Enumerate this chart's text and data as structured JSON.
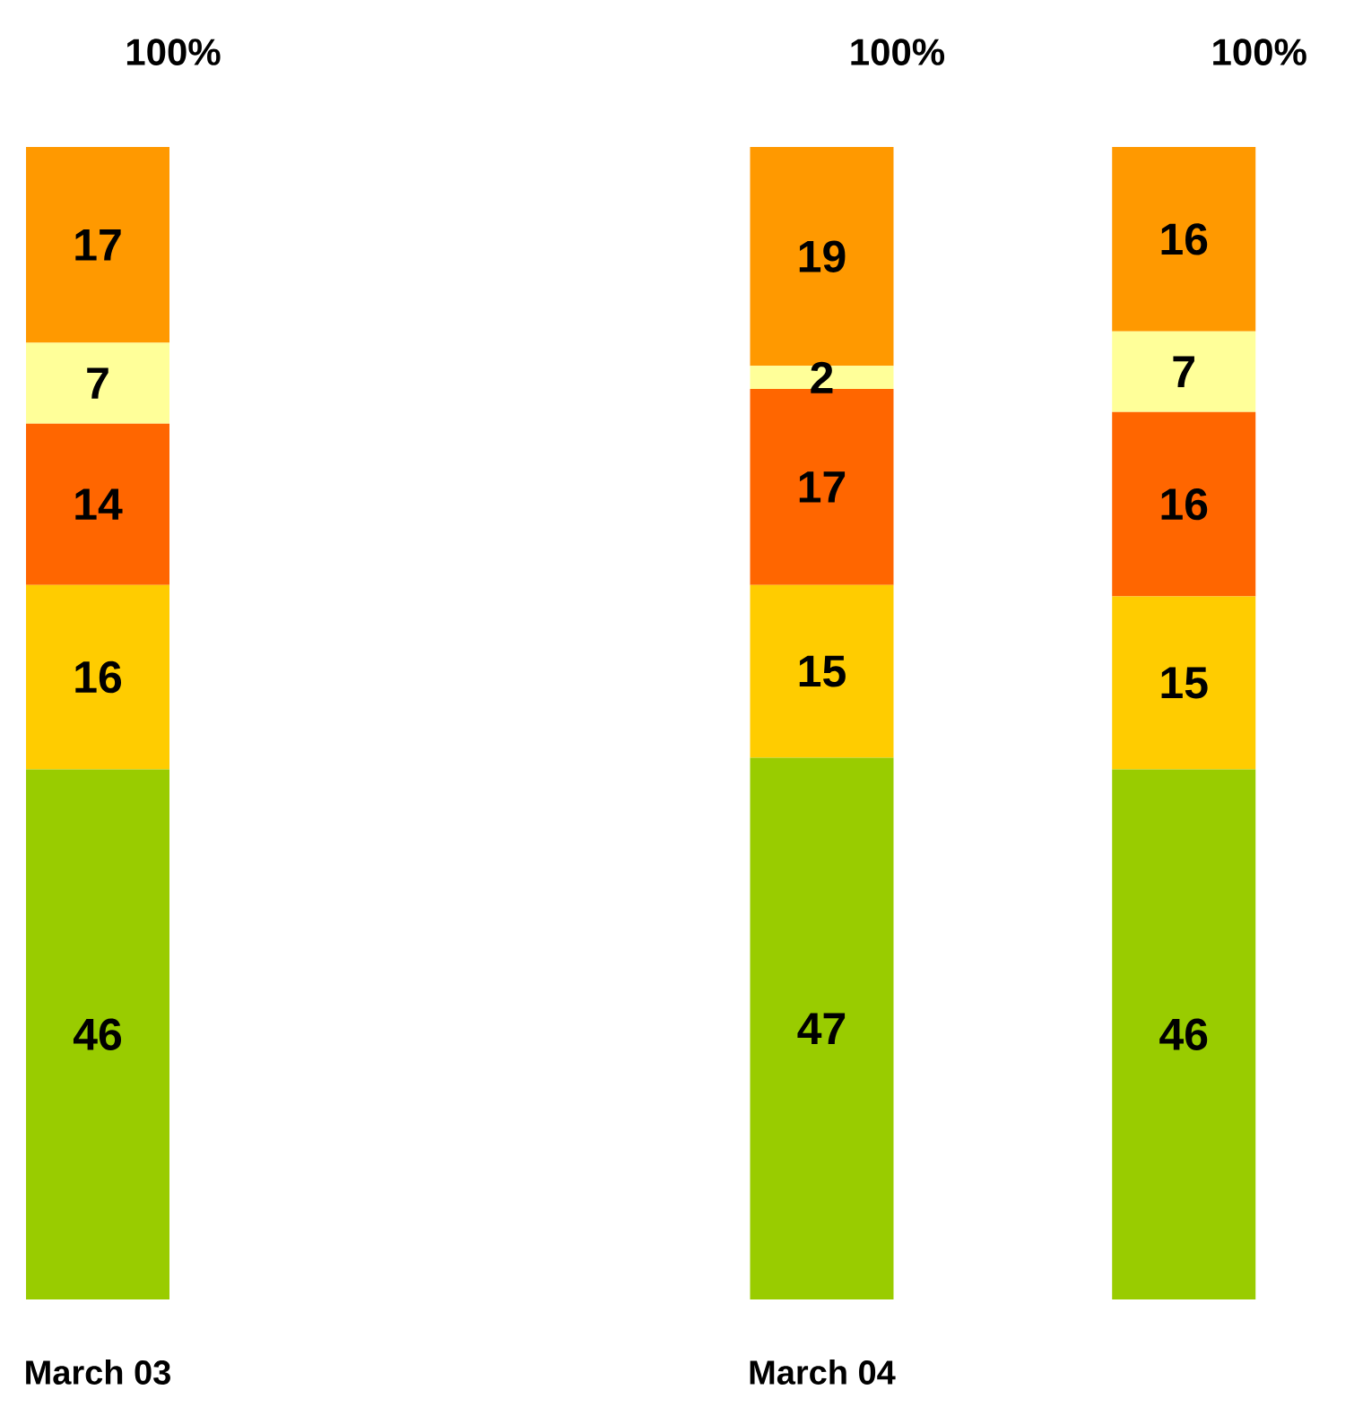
{
  "chart_data": {
    "type": "bar",
    "stacked": true,
    "categories": [
      "March 03",
      null,
      "March 04",
      null
    ],
    "series": [
      {
        "color": "#99cc00",
        "values": [
          46,
          null,
          47,
          46
        ]
      },
      {
        "color": "#ffcc00",
        "values": [
          16,
          null,
          15,
          15
        ]
      },
      {
        "color": "#ff6600",
        "values": [
          14,
          null,
          17,
          16
        ]
      },
      {
        "color": "#ffff99",
        "values": [
          7,
          null,
          2,
          7
        ]
      },
      {
        "color": "#ff9900",
        "values": [
          17,
          null,
          19,
          16
        ]
      }
    ],
    "ylim": [
      0,
      100
    ],
    "data_labels": true,
    "totals": [
      "100%",
      null,
      "100%",
      "100%"
    ]
  }
}
